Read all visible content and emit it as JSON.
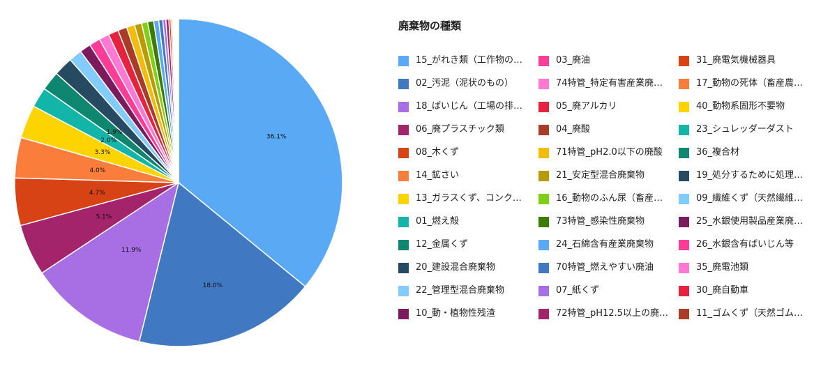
{
  "chart_data": {
    "type": "pie",
    "title": "廃棄物の種類",
    "legend_position": "right",
    "categories": [
      "15_がれき類（工作物の…",
      "02_汚泥（泥状のもの）",
      "18_ばいじん（工場の排…",
      "06_廃プラスチック類",
      "08_木くず",
      "14_鉱さい",
      "13_ガラスくず、コンク…",
      "01_燃え殻",
      "12_金属くず",
      "20_建設混合廃棄物",
      "22_管理型混合廃棄物",
      "10_動・植物性残渣",
      "03_廃油",
      "74特管_特定有害産業廃…",
      "05_廃アルカリ",
      "04_廃酸",
      "71特管_pH2.0以下の廃酸",
      "21_安定型混合廃棄物",
      "16_動物のふん尿（畜産…",
      "73特管_感染性廃棄物",
      "24_石綿含有産業廃棄物",
      "70特管_燃えやすい廃油",
      "07_紙くず",
      "72特管_pH12.5以上の廃…",
      "31_廃電気機械器具",
      "17_動物の死体（畜産農…",
      "40_動物系固形不要物",
      "23_シュレッダーダスト",
      "36_複合材",
      "19_処分するために処理…",
      "09_繊維くず（天然繊維…",
      "25_水銀使用製品産業廃…",
      "26_水銀含有ばいじん等",
      "35_廃電池類",
      "30_廃自動車",
      "11_ゴムくず（天然ゴム…"
    ],
    "values": [
      36.1,
      18.0,
      11.9,
      5.1,
      4.7,
      4.0,
      3.3,
      2.0,
      1.9,
      1.9,
      1.3,
      1.1,
      1.1,
      1.0,
      1.0,
      0.9,
      0.8,
      0.7,
      0.6,
      0.6,
      0.5,
      0.4,
      0.3,
      0.3,
      0.2,
      0.15,
      0.1,
      0.1,
      0.05,
      0.05,
      0.05,
      0.05,
      0.05,
      0.05,
      0.05,
      0.05
    ],
    "labels": [
      "36.1%",
      "18.0%",
      "11.9%",
      "5.1%",
      "4.7%",
      "4.0%",
      "3.3%",
      "2.0%",
      "1.9%",
      "",
      "",
      "",
      "",
      "",
      "",
      "",
      "",
      "",
      "",
      "",
      "",
      "",
      "",
      "",
      "",
      "",
      "",
      "",
      "",
      "",
      "",
      "",
      "",
      "",
      "",
      ""
    ],
    "colors": [
      "#5aa9f5",
      "#4079c1",
      "#a86fe5",
      "#a3246b",
      "#d84315",
      "#fb7d3c",
      "#fdd400",
      "#12b5a8",
      "#0e8670",
      "#264a60",
      "#81cbff",
      "#7b1b5e",
      "#fc3d98",
      "#ff79d4",
      "#e5233e",
      "#a93c26",
      "#f2bd0a",
      "#b89b00",
      "#7fcf16",
      "#3c7c00",
      "#5aa9f5",
      "#4079c1",
      "#a86fe5",
      "#a3246b",
      "#d84315",
      "#fb7d3c",
      "#fdd400",
      "#12b5a8",
      "#0e8670",
      "#264a60",
      "#81cbff",
      "#7b1b5e",
      "#fc3d98",
      "#ff79d4",
      "#e5233e",
      "#a93c26"
    ],
    "legend_order": [
      0,
      12,
      24,
      1,
      13,
      25,
      2,
      14,
      26,
      3,
      15,
      27,
      4,
      16,
      28,
      5,
      17,
      29,
      6,
      18,
      30,
      7,
      19,
      31,
      8,
      20,
      32,
      9,
      21,
      33,
      10,
      22,
      34,
      11,
      23,
      35
    ]
  }
}
